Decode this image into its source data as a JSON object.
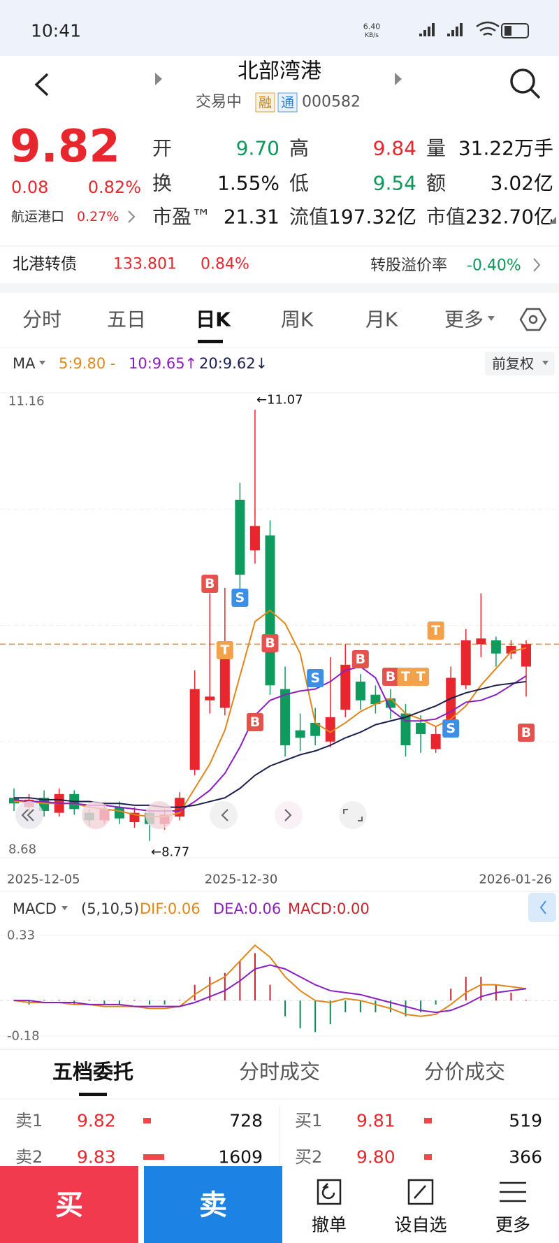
{
  "status": {
    "time": "10:41",
    "speed": "6.40",
    "speed_unit": "KB/s"
  },
  "header": {
    "title": "北部湾港",
    "status": "交易中",
    "tags": [
      "融",
      "通"
    ],
    "code": "000582"
  },
  "quote": {
    "price": "9.82",
    "change": "0.08",
    "pct": "0.82%",
    "sector": {
      "name": "航运港口",
      "pct": "0.27%"
    },
    "fields": [
      {
        "label": "开",
        "value": "9.70",
        "color": "#0b9a5a"
      },
      {
        "label": "高",
        "value": "9.84",
        "color": "#e8262d"
      },
      {
        "label": "量",
        "value": "31.22万手",
        "color": "#111"
      },
      {
        "label": "换",
        "value": "1.55%",
        "color": "#111"
      },
      {
        "label": "低",
        "value": "9.54",
        "color": "#0b9a5a"
      },
      {
        "label": "额",
        "value": "3.02亿",
        "color": "#111"
      },
      {
        "label": "市盈™",
        "value": "21.31",
        "color": "#111"
      },
      {
        "label": "流值",
        "value": "197.32亿",
        "color": "#111"
      },
      {
        "label": "市值",
        "value": "232.70亿",
        "color": "#111"
      }
    ]
  },
  "bond": {
    "name": "北港转债",
    "price": "133.801",
    "pct": "0.84%",
    "premium_label": "转股溢价率",
    "premium": "-0.40%"
  },
  "tabs": [
    "分时",
    "五日",
    "日K",
    "周K",
    "月K",
    "更多"
  ],
  "chart_data": [
    {
      "type": "candlestick",
      "legend_title": "MA",
      "adjust": "前复权",
      "up_color": "#e8262d",
      "down_color": "#0f9a5e",
      "ylim": [
        8.68,
        11.16
      ],
      "yticks": [
        11.16,
        8.68
      ],
      "xtick_labels": [
        "2025-12-05",
        "2025-12-30",
        "2026-01-26"
      ],
      "annotations": [
        "←11.07",
        "←8.77"
      ],
      "signals": [
        "B",
        "T",
        "S",
        "B",
        "B",
        "S",
        "B",
        "B",
        "T",
        "T",
        "T",
        "S",
        "B"
      ],
      "open": [
        9.0,
        8.95,
        9.0,
        8.92,
        9.02,
        8.92,
        8.88,
        8.95,
        8.87,
        8.92,
        8.86,
        8.9,
        9.15,
        9.52,
        9.48,
        10.59,
        10.32,
        10.4,
        9.58,
        9.36,
        9.4,
        9.3,
        9.47,
        9.62,
        9.55,
        9.53,
        9.45,
        9.4,
        9.26,
        9.37,
        9.6,
        9.82,
        9.84,
        9.77,
        9.7
      ],
      "high": [
        9.05,
        9.02,
        9.04,
        9.05,
        9.04,
        8.94,
        8.97,
        8.98,
        8.95,
        8.94,
        8.94,
        9.03,
        9.68,
        10.09,
        10.12,
        10.68,
        11.07,
        10.48,
        9.7,
        9.45,
        9.48,
        9.75,
        9.82,
        9.66,
        9.6,
        9.58,
        9.5,
        9.44,
        9.38,
        9.7,
        9.9,
        10.09,
        9.86,
        9.84,
        9.84
      ],
      "low": [
        8.93,
        8.92,
        8.9,
        8.9,
        8.91,
        8.85,
        8.86,
        8.86,
        8.84,
        8.77,
        8.83,
        8.88,
        9.12,
        9.45,
        9.44,
        10.1,
        10.25,
        9.55,
        9.22,
        9.25,
        9.28,
        9.27,
        9.43,
        9.47,
        9.45,
        9.42,
        9.22,
        9.24,
        9.24,
        9.33,
        9.58,
        9.75,
        9.7,
        9.74,
        9.54
      ],
      "close": [
        8.97,
        8.99,
        8.93,
        9.02,
        8.94,
        8.88,
        8.94,
        8.89,
        8.92,
        8.86,
        8.91,
        9.0,
        9.58,
        9.54,
        9.76,
        10.19,
        10.45,
        9.6,
        9.28,
        9.32,
        9.33,
        9.43,
        9.71,
        9.52,
        9.5,
        9.48,
        9.28,
        9.34,
        9.34,
        9.64,
        9.84,
        9.85,
        9.77,
        9.81,
        9.82
      ],
      "series": [
        {
          "name": "5:9.80 -",
          "color": "#e0861a",
          "values": [
            8.98,
            8.98,
            8.97,
            8.97,
            8.97,
            8.95,
            8.94,
            8.93,
            8.91,
            8.9,
            8.9,
            8.92,
            9.05,
            9.18,
            9.36,
            9.65,
            9.94,
            10.0,
            9.93,
            9.77,
            9.4,
            9.35,
            9.4,
            9.46,
            9.5,
            9.53,
            9.45,
            9.42,
            9.38,
            9.42,
            9.49,
            9.6,
            9.69,
            9.78,
            9.8
          ]
        },
        {
          "name": "10:9.65↑",
          "color": "#8a1fc0",
          "values": [
            8.99,
            8.98,
            8.98,
            8.97,
            8.97,
            8.96,
            8.96,
            8.95,
            8.94,
            8.93,
            8.93,
            8.93,
            8.98,
            9.04,
            9.13,
            9.27,
            9.44,
            9.52,
            9.55,
            9.57,
            9.58,
            9.62,
            9.68,
            9.7,
            9.64,
            9.47,
            9.41,
            9.41,
            9.42,
            9.46,
            9.51,
            9.52,
            9.55,
            9.6,
            9.65
          ]
        },
        {
          "name": "20:9.62↓",
          "color": "#1a1f4d",
          "values": [
            9.0,
            9.0,
            8.99,
            8.99,
            8.98,
            8.98,
            8.97,
            8.97,
            8.96,
            8.96,
            8.95,
            8.95,
            8.96,
            8.98,
            9.0,
            9.05,
            9.12,
            9.17,
            9.2,
            9.23,
            9.25,
            9.28,
            9.32,
            9.35,
            9.39,
            9.41,
            9.43,
            9.46,
            9.49,
            9.53,
            9.56,
            9.58,
            9.6,
            9.61,
            9.62
          ]
        }
      ]
    },
    {
      "type": "macd",
      "title": "MACD",
      "params": "(5,10,5)",
      "ylim": [
        -0.18,
        0.33
      ],
      "yticks": [
        0.33,
        -0.18
      ],
      "up_color": "#c8232c",
      "down_color": "#0f8a52",
      "series": [
        {
          "name": "DIF:0.06",
          "color": "#e0861a",
          "values": [
            0.0,
            -0.01,
            -0.01,
            -0.01,
            -0.02,
            -0.02,
            -0.03,
            -0.03,
            -0.03,
            -0.04,
            -0.04,
            -0.03,
            0.03,
            0.08,
            0.12,
            0.2,
            0.28,
            0.22,
            0.12,
            0.05,
            0.0,
            -0.01,
            0.01,
            0.0,
            -0.02,
            -0.04,
            -0.07,
            -0.08,
            -0.07,
            -0.02,
            0.04,
            0.08,
            0.08,
            0.07,
            0.06
          ]
        },
        {
          "name": "DEA:0.06",
          "color": "#8a1fc0",
          "values": [
            0.0,
            0.0,
            -0.01,
            -0.01,
            -0.01,
            -0.02,
            -0.02,
            -0.02,
            -0.03,
            -0.03,
            -0.03,
            -0.03,
            -0.01,
            0.02,
            0.05,
            0.1,
            0.16,
            0.18,
            0.16,
            0.12,
            0.08,
            0.05,
            0.04,
            0.03,
            0.01,
            -0.01,
            -0.03,
            -0.05,
            -0.06,
            -0.05,
            -0.02,
            0.02,
            0.04,
            0.05,
            0.06
          ]
        }
      ],
      "bars": {
        "name": "MACD:0.00",
        "color": "#c8232c",
        "values": [
          0.0,
          -0.02,
          0.0,
          0.0,
          -0.02,
          0.0,
          -0.02,
          -0.02,
          0.0,
          -0.02,
          -0.02,
          0.0,
          0.08,
          0.12,
          0.14,
          0.2,
          0.24,
          0.08,
          -0.08,
          -0.14,
          -0.16,
          -0.12,
          -0.06,
          -0.06,
          -0.06,
          -0.06,
          -0.08,
          -0.06,
          -0.02,
          0.06,
          0.12,
          0.12,
          0.08,
          0.04,
          0.0
        ]
      }
    }
  ],
  "orderbook": {
    "tabs": [
      "五档委托",
      "分时成交",
      "分价成交"
    ],
    "sell": [
      {
        "label": "卖1",
        "price": "9.82",
        "qty": "728"
      },
      {
        "label": "卖2",
        "price": "9.83",
        "qty": "1609"
      }
    ],
    "buy": [
      {
        "label": "买1",
        "price": "9.81",
        "qty": "519"
      },
      {
        "label": "买2",
        "price": "9.80",
        "qty": "366"
      }
    ]
  },
  "actions": {
    "buy": "买",
    "sell": "卖",
    "items": [
      "撤单",
      "设自选",
      "更多"
    ]
  }
}
